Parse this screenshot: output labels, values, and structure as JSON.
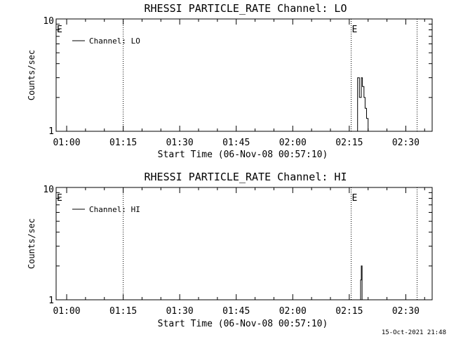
{
  "chart_data": [
    {
      "type": "line",
      "title": "RHESSI PARTICLE_RATE Channel: LO",
      "xlabel": "Start Time (06-Nov-08 00:57:10)",
      "ylabel": "Counts/sec",
      "yscale": "log",
      "ylim": [
        1,
        10
      ],
      "y_tick_labels": [
        "1",
        "10"
      ],
      "x_tick_labels": [
        "01:00",
        "01:15",
        "01:30",
        "01:45",
        "02:00",
        "02:15",
        "02:30"
      ],
      "x_tick_minutes": [
        60,
        75,
        90,
        105,
        120,
        135,
        150
      ],
      "xlim_minutes": [
        57.2,
        157
      ],
      "legend": [
        "Channel: LO"
      ],
      "legend_position": "top-left",
      "event_lines_minutes": [
        75,
        135.5,
        153
      ],
      "event_markers": [
        {
          "label": "E",
          "minute": 57.2
        },
        {
          "label": "E",
          "minute": 135.5
        }
      ],
      "series": [
        {
          "name": "Channel: LO",
          "x_minutes": [
            137.2,
            137.2,
            137.7,
            137.7,
            138.2,
            138.2,
            138.5,
            138.5,
            138.9,
            138.9,
            139.2,
            139.2,
            139.6,
            139.6,
            140.0,
            140.0
          ],
          "values": [
            1,
            3.0,
            3.0,
            2.0,
            2.0,
            3.0,
            3.0,
            2.5,
            2.5,
            2.0,
            2.0,
            1.6,
            1.6,
            1.3,
            1.3,
            1
          ]
        }
      ]
    },
    {
      "type": "line",
      "title": "RHESSI PARTICLE_RATE Channel: HI",
      "xlabel": "Start Time (06-Nov-08 00:57:10)",
      "ylabel": "Counts/sec",
      "yscale": "log",
      "ylim": [
        1,
        10
      ],
      "y_tick_labels": [
        "1",
        "10"
      ],
      "x_tick_labels": [
        "01:00",
        "01:15",
        "01:30",
        "01:45",
        "02:00",
        "02:15",
        "02:30"
      ],
      "x_tick_minutes": [
        60,
        75,
        90,
        105,
        120,
        135,
        150
      ],
      "xlim_minutes": [
        57.2,
        157
      ],
      "legend": [
        "Channel: HI"
      ],
      "legend_position": "top-left",
      "event_lines_minutes": [
        75,
        135.5,
        153
      ],
      "event_markers": [
        {
          "label": "E",
          "minute": 57.2
        },
        {
          "label": "E",
          "minute": 135.5
        }
      ],
      "series": [
        {
          "name": "Channel: HI",
          "x_minutes": [
            138.0,
            138.0,
            138.2,
            138.2,
            138.4,
            138.4
          ],
          "values": [
            1,
            1.5,
            1.5,
            2.0,
            2.0,
            1
          ]
        }
      ]
    }
  ],
  "footer": {
    "timestamp": "15-Oct-2021 21:48"
  }
}
